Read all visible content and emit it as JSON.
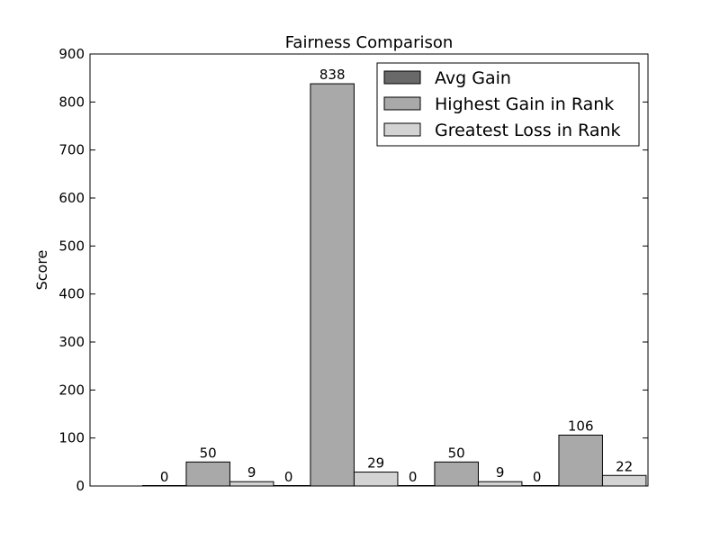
{
  "chart_data": {
    "type": "bar",
    "title": "Fairness Comparison",
    "xlabel": "",
    "ylabel": "Score",
    "ylim": [
      0,
      900
    ],
    "yticks": [
      0,
      100,
      200,
      300,
      400,
      500,
      600,
      700,
      800,
      900
    ],
    "grid": false,
    "legend_position": "top-right",
    "group_count": 4,
    "series": [
      {
        "name": "Avg Gain",
        "color": "#696969",
        "values": [
          0,
          0,
          0,
          0
        ],
        "labels": [
          "0",
          "0",
          "0",
          "0"
        ]
      },
      {
        "name": "Highest Gain in Rank",
        "color": "#a9a9a9",
        "values": [
          50,
          838,
          50,
          106
        ],
        "labels": [
          "50",
          "838",
          "50",
          "106"
        ]
      },
      {
        "name": "Greatest Loss in Rank",
        "color": "#d3d3d3",
        "values": [
          9,
          29,
          9,
          22
        ],
        "labels": [
          "9",
          "29",
          "9",
          "22"
        ]
      }
    ]
  }
}
